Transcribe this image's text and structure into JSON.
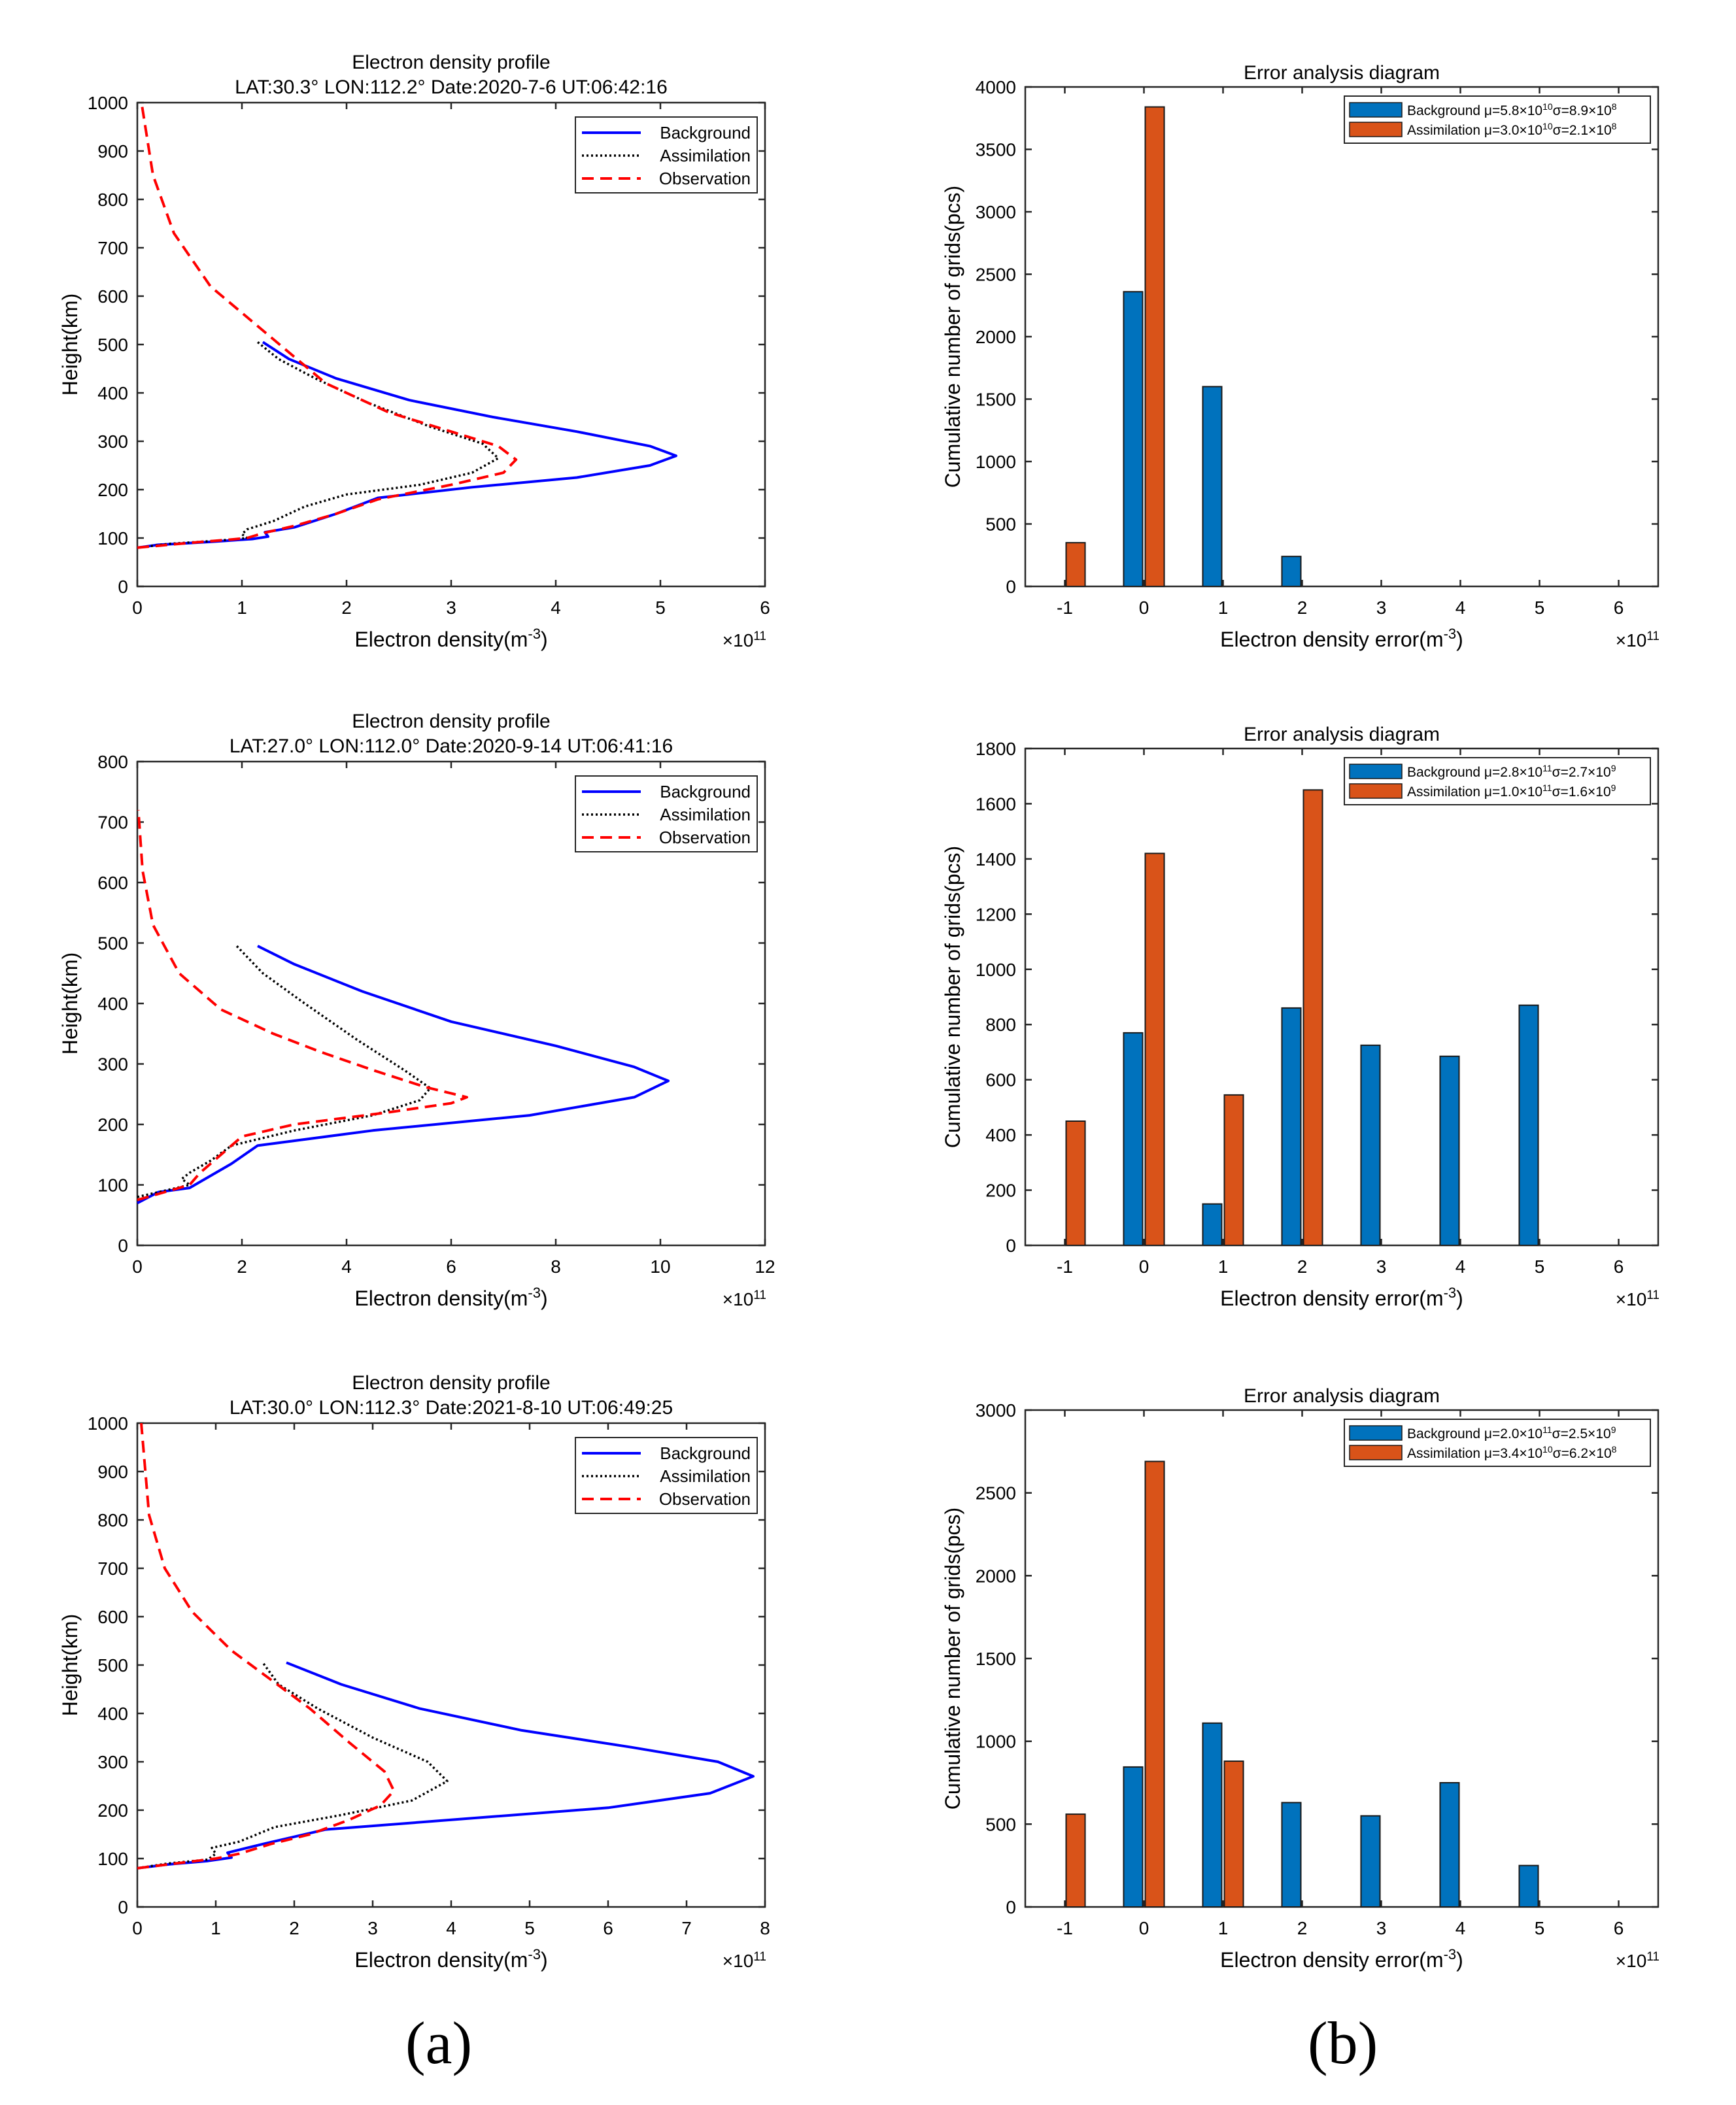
{
  "panel_labels": [
    "(a)",
    "(b)"
  ],
  "legend_profiles": [
    "Background",
    "Assimilation",
    "Observation"
  ],
  "colors": {
    "background": "#0000ff",
    "assimilation": "#000000",
    "observation": "#ff0000",
    "bar_background": "#0072bd",
    "bar_assimilation": "#d95319"
  },
  "chart_data": [
    {
      "id": "profile1",
      "type": "line",
      "title": "Electron density profile",
      "subtitle": "LAT:30.3° LON:112.2°  Date:2020-7-6  UT:06:42:16",
      "xlabel": "Electron density(m",
      "xlabel_sup": "-3",
      "xlabel_end": ")",
      "ylabel": "Height(km)",
      "x_exponent": "×10",
      "x_exponent_sup": "11",
      "xlim": [
        0,
        6
      ],
      "ylim": [
        0,
        1000
      ],
      "xticks": [
        0,
        1,
        2,
        3,
        4,
        5,
        6
      ],
      "yticks": [
        0,
        100,
        200,
        300,
        400,
        500,
        600,
        700,
        800,
        900,
        1000
      ],
      "series": [
        {
          "name": "Background",
          "points": [
            [
              0,
              80
            ],
            [
              0.2,
              86
            ],
            [
              0.7,
              92
            ],
            [
              1.1,
              98
            ],
            [
              1.25,
              103
            ],
            [
              1.22,
              112
            ],
            [
              1.5,
              122
            ],
            [
              1.9,
              150
            ],
            [
              2.3,
              183
            ],
            [
              3.2,
              205
            ],
            [
              4.2,
              225
            ],
            [
              4.9,
              250
            ],
            [
              5.15,
              270
            ],
            [
              4.9,
              290
            ],
            [
              4.2,
              320
            ],
            [
              3.4,
              350
            ],
            [
              2.6,
              385
            ],
            [
              1.9,
              430
            ],
            [
              1.45,
              470
            ],
            [
              1.2,
              505
            ]
          ]
        },
        {
          "name": "Assimilation",
          "points": [
            [
              0,
              80
            ],
            [
              0.3,
              88
            ],
            [
              0.8,
              95
            ],
            [
              1.05,
              100
            ],
            [
              1.0,
              108
            ],
            [
              1.05,
              118
            ],
            [
              1.3,
              135
            ],
            [
              1.6,
              165
            ],
            [
              2.0,
              190
            ],
            [
              2.7,
              210
            ],
            [
              3.2,
              235
            ],
            [
              3.45,
              265
            ],
            [
              3.3,
              295
            ],
            [
              2.8,
              330
            ],
            [
              2.2,
              380
            ],
            [
              1.7,
              430
            ],
            [
              1.35,
              470
            ],
            [
              1.15,
              505
            ]
          ]
        },
        {
          "name": "Observation",
          "points": [
            [
              0,
              80
            ],
            [
              0.5,
              90
            ],
            [
              0.9,
              97
            ],
            [
              1.05,
              100
            ],
            [
              1.2,
              110
            ],
            [
              1.5,
              125
            ],
            [
              1.9,
              150
            ],
            [
              2.3,
              180
            ],
            [
              3.0,
              210
            ],
            [
              3.5,
              235
            ],
            [
              3.62,
              262
            ],
            [
              3.45,
              290
            ],
            [
              3.0,
              320
            ],
            [
              2.4,
              360
            ],
            [
              1.8,
              420
            ],
            [
              1.25,
              520
            ],
            [
              0.7,
              620
            ],
            [
              0.35,
              730
            ],
            [
              0.15,
              850
            ],
            [
              0.04,
              1000
            ]
          ]
        }
      ]
    },
    {
      "id": "profile2",
      "type": "line",
      "title": "Electron density profile",
      "subtitle": "LAT:27.0° LON:112.0°  Date:2020-9-14  UT:06:41:16",
      "xlabel": "Electron density(m",
      "xlabel_sup": "-3",
      "xlabel_end": ")",
      "ylabel": "Height(km)",
      "x_exponent": "×10",
      "x_exponent_sup": "11",
      "xlim": [
        0,
        12
      ],
      "ylim": [
        0,
        800
      ],
      "xticks": [
        0,
        2,
        4,
        6,
        8,
        10,
        12
      ],
      "yticks": [
        0,
        100,
        200,
        300,
        400,
        500,
        600,
        700,
        800
      ],
      "series": [
        {
          "name": "Background",
          "points": [
            [
              0,
              70
            ],
            [
              0.4,
              88
            ],
            [
              1.0,
              95
            ],
            [
              1.2,
              105
            ],
            [
              1.8,
              135
            ],
            [
              2.3,
              165
            ],
            [
              4.5,
              190
            ],
            [
              7.5,
              215
            ],
            [
              9.5,
              245
            ],
            [
              10.15,
              272
            ],
            [
              9.5,
              295
            ],
            [
              8.0,
              330
            ],
            [
              6.0,
              370
            ],
            [
              4.3,
              420
            ],
            [
              3.0,
              465
            ],
            [
              2.3,
              495
            ]
          ]
        },
        {
          "name": "Assimilation",
          "points": [
            [
              0,
              80
            ],
            [
              0.5,
              90
            ],
            [
              1.0,
              100
            ],
            [
              0.85,
              110
            ],
            [
              1.0,
              120
            ],
            [
              1.4,
              140
            ],
            [
              1.8,
              165
            ],
            [
              3.0,
              190
            ],
            [
              4.5,
              215
            ],
            [
              5.4,
              240
            ],
            [
              5.6,
              260
            ],
            [
              5.1,
              290
            ],
            [
              4.2,
              340
            ],
            [
              3.2,
              400
            ],
            [
              2.4,
              450
            ],
            [
              1.9,
              495
            ]
          ]
        },
        {
          "name": "Observation",
          "points": [
            [
              0,
              75
            ],
            [
              0.6,
              90
            ],
            [
              1.0,
              100
            ],
            [
              1.2,
              120
            ],
            [
              1.6,
              150
            ],
            [
              2.0,
              180
            ],
            [
              3.0,
              200
            ],
            [
              4.8,
              220
            ],
            [
              6.0,
              235
            ],
            [
              6.3,
              245
            ],
            [
              5.5,
              262
            ],
            [
              4.5,
              290
            ],
            [
              3.5,
              320
            ],
            [
              2.6,
              350
            ],
            [
              1.6,
              390
            ],
            [
              0.8,
              450
            ],
            [
              0.3,
              530
            ],
            [
              0.1,
              620
            ],
            [
              0.02,
              720
            ]
          ]
        }
      ]
    },
    {
      "id": "profile3",
      "type": "line",
      "title": "Electron density profile",
      "subtitle": "LAT:30.0° LON:112.3°  Date:2021-8-10  UT:06:49:25",
      "xlabel": "Electron density(m",
      "xlabel_sup": "-3",
      "xlabel_end": ")",
      "ylabel": "Height(km)",
      "x_exponent": "×10",
      "x_exponent_sup": "11",
      "xlim": [
        0,
        8
      ],
      "ylim": [
        0,
        1000
      ],
      "xticks": [
        0,
        1,
        2,
        3,
        4,
        5,
        6,
        7,
        8
      ],
      "yticks": [
        0,
        100,
        200,
        300,
        400,
        500,
        600,
        700,
        800,
        900,
        1000
      ],
      "series": [
        {
          "name": "Background",
          "points": [
            [
              0,
              80
            ],
            [
              0.4,
              88
            ],
            [
              0.9,
              95
            ],
            [
              1.2,
              102
            ],
            [
              1.15,
              112
            ],
            [
              1.6,
              130
            ],
            [
              2.4,
              160
            ],
            [
              4.0,
              180
            ],
            [
              6.0,
              205
            ],
            [
              7.3,
              235
            ],
            [
              7.85,
              270
            ],
            [
              7.4,
              300
            ],
            [
              6.3,
              330
            ],
            [
              4.9,
              365
            ],
            [
              3.6,
              410
            ],
            [
              2.6,
              460
            ],
            [
              1.9,
              505
            ]
          ]
        },
        {
          "name": "Assimilation",
          "points": [
            [
              0,
              80
            ],
            [
              0.4,
              90
            ],
            [
              0.9,
              98
            ],
            [
              1.0,
              110
            ],
            [
              0.95,
              122
            ],
            [
              1.3,
              135
            ],
            [
              1.75,
              165
            ],
            [
              2.6,
              190
            ],
            [
              3.5,
              220
            ],
            [
              3.95,
              260
            ],
            [
              3.7,
              300
            ],
            [
              3.0,
              350
            ],
            [
              2.3,
              410
            ],
            [
              1.8,
              460
            ],
            [
              1.6,
              505
            ]
          ]
        },
        {
          "name": "Observation",
          "points": [
            [
              0,
              80
            ],
            [
              0.5,
              90
            ],
            [
              1.0,
              100
            ],
            [
              1.3,
              110
            ],
            [
              1.7,
              130
            ],
            [
              2.2,
              150
            ],
            [
              2.7,
              180
            ],
            [
              3.1,
              210
            ],
            [
              3.27,
              240
            ],
            [
              3.15,
              280
            ],
            [
              2.7,
              340
            ],
            [
              2.2,
              410
            ],
            [
              1.7,
              470
            ],
            [
              1.2,
              530
            ],
            [
              0.7,
              610
            ],
            [
              0.35,
              700
            ],
            [
              0.15,
              810
            ],
            [
              0.05,
              1000
            ]
          ]
        }
      ]
    },
    {
      "id": "hist1",
      "type": "bar",
      "title": "Error analysis diagram",
      "xlabel": "Electron density error(m",
      "xlabel_sup": "-3",
      "xlabel_end": ")",
      "ylabel": "Cumulative number of grids(pcs)",
      "x_exponent": "×10",
      "x_exponent_sup": "11",
      "xlim": [
        -1.5,
        6.5
      ],
      "ylim": [
        0,
        4000
      ],
      "categories": [
        "-1",
        "0",
        "1",
        "2",
        "3",
        "4",
        "5",
        "6"
      ],
      "yticks": [
        0,
        500,
        1000,
        1500,
        2000,
        2500,
        3000,
        3500,
        4000
      ],
      "series": [
        {
          "name": "Background",
          "values": [
            0,
            2360,
            1600,
            240,
            0,
            0,
            0,
            0
          ],
          "legend": "Background μ=5.8×10",
          "mu_exp": "10",
          "sigma": "σ=8.9×10",
          "sigma_exp": "8"
        },
        {
          "name": "Assimilation",
          "values": [
            350,
            3840,
            0,
            0,
            0,
            0,
            0,
            0
          ],
          "legend": "Assimilation μ=3.0×10",
          "mu_exp": "10",
          "sigma": "σ=2.1×10",
          "sigma_exp": "8"
        }
      ]
    },
    {
      "id": "hist2",
      "type": "bar",
      "title": "Error analysis diagram",
      "xlabel": "Electron density error(m",
      "xlabel_sup": "-3",
      "xlabel_end": ")",
      "ylabel": "Cumulative number of grids(pcs)",
      "x_exponent": "×10",
      "x_exponent_sup": "11",
      "xlim": [
        -1.5,
        6.5
      ],
      "ylim": [
        0,
        1800
      ],
      "categories": [
        "-1",
        "0",
        "1",
        "2",
        "3",
        "4",
        "5",
        "6"
      ],
      "yticks": [
        0,
        200,
        400,
        600,
        800,
        1000,
        1200,
        1400,
        1600,
        1800
      ],
      "series": [
        {
          "name": "Background",
          "values": [
            0,
            770,
            150,
            860,
            725,
            685,
            870,
            0
          ],
          "legend": "Background μ=2.8×10",
          "mu_exp": "11",
          "sigma": "σ=2.7×10",
          "sigma_exp": "9"
        },
        {
          "name": "Assimilation",
          "values": [
            450,
            1420,
            545,
            1650,
            0,
            0,
            0,
            0
          ],
          "legend": "Assimilation μ=1.0×10",
          "mu_exp": "11",
          "sigma": "σ=1.6×10",
          "sigma_exp": "9"
        }
      ]
    },
    {
      "id": "hist3",
      "type": "bar",
      "title": "Error analysis diagram",
      "xlabel": "Electron density error(m",
      "xlabel_sup": "-3",
      "xlabel_end": ")",
      "ylabel": "Cumulative number of grids(pcs)",
      "x_exponent": "×10",
      "x_exponent_sup": "11",
      "xlim": [
        -1.5,
        6.5
      ],
      "ylim": [
        0,
        3000
      ],
      "categories": [
        "-1",
        "0",
        "1",
        "2",
        "3",
        "4",
        "5",
        "6"
      ],
      "yticks": [
        0,
        500,
        1000,
        1500,
        2000,
        2500,
        3000
      ],
      "series": [
        {
          "name": "Background",
          "values": [
            0,
            845,
            1110,
            630,
            550,
            750,
            250,
            0
          ],
          "legend": "Background μ=2.0×10",
          "mu_exp": "11",
          "sigma": "σ=2.5×10",
          "sigma_exp": "9"
        },
        {
          "name": "Assimilation",
          "values": [
            560,
            2690,
            880,
            0,
            0,
            0,
            0,
            0
          ],
          "legend": "Assimilation μ=3.4×10",
          "mu_exp": "10",
          "sigma": "σ=6.2×10",
          "sigma_exp": "8"
        }
      ]
    }
  ]
}
